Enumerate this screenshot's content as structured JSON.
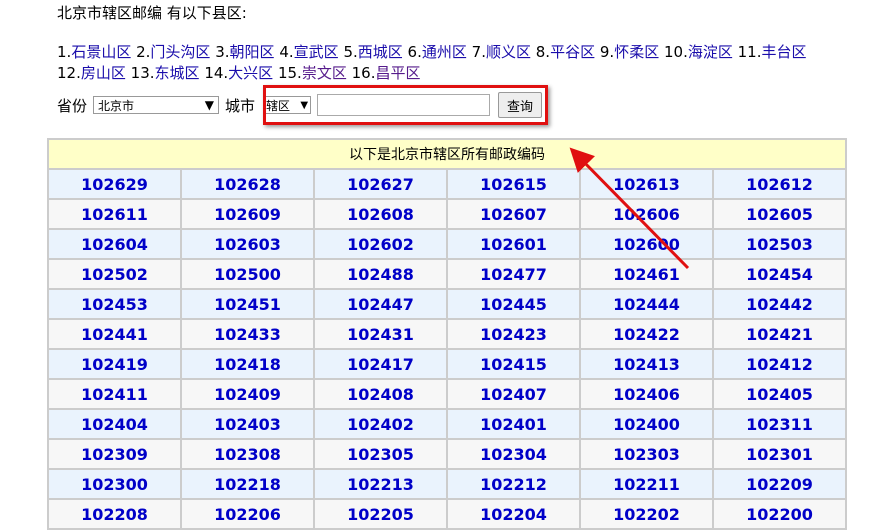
{
  "title": "北京市辖区邮编 有以下县区:",
  "districts": [
    {
      "num": "1.",
      "name": "石景山区"
    },
    {
      "num": "2.",
      "name": "门头沟区"
    },
    {
      "num": "3.",
      "name": "朝阳区"
    },
    {
      "num": "4.",
      "name": "宣武区"
    },
    {
      "num": "5.",
      "name": "西城区"
    },
    {
      "num": "6.",
      "name": "通州区"
    },
    {
      "num": "7.",
      "name": "顺义区"
    },
    {
      "num": "8.",
      "name": "平谷区"
    },
    {
      "num": "9.",
      "name": "怀柔区"
    },
    {
      "num": "10.",
      "name": "海淀区"
    },
    {
      "num": "11.",
      "name": "丰台区"
    },
    {
      "num": "12.",
      "name": "房山区"
    },
    {
      "num": "13.",
      "name": "东城区"
    },
    {
      "num": "14.",
      "name": "大兴区"
    },
    {
      "num": "15.",
      "name": "崇文区"
    },
    {
      "num": "16.",
      "name": "昌平区"
    }
  ],
  "form": {
    "province_label": "省份",
    "province_value": "北京市",
    "city_label": "城市",
    "city_value": "辖区",
    "search_value": "",
    "query_button": "查询"
  },
  "table": {
    "header": "以下是北京市辖区所有邮政编码",
    "rows": [
      [
        "102629",
        "102628",
        "102627",
        "102615",
        "102613",
        "102612"
      ],
      [
        "102611",
        "102609",
        "102608",
        "102607",
        "102606",
        "102605"
      ],
      [
        "102604",
        "102603",
        "102602",
        "102601",
        "102600",
        "102503"
      ],
      [
        "102502",
        "102500",
        "102488",
        "102477",
        "102461",
        "102454"
      ],
      [
        "102453",
        "102451",
        "102447",
        "102445",
        "102444",
        "102442"
      ],
      [
        "102441",
        "102433",
        "102431",
        "102423",
        "102422",
        "102421"
      ],
      [
        "102419",
        "102418",
        "102417",
        "102415",
        "102413",
        "102412"
      ],
      [
        "102411",
        "102409",
        "102408",
        "102407",
        "102406",
        "102405"
      ],
      [
        "102404",
        "102403",
        "102402",
        "102401",
        "102400",
        "102311"
      ],
      [
        "102309",
        "102308",
        "102305",
        "102304",
        "102303",
        "102301"
      ],
      [
        "102300",
        "102218",
        "102213",
        "102212",
        "102211",
        "102209"
      ],
      [
        "102208",
        "102206",
        "102205",
        "102204",
        "102202",
        "102200"
      ]
    ]
  },
  "annotation_color": "#e01010"
}
